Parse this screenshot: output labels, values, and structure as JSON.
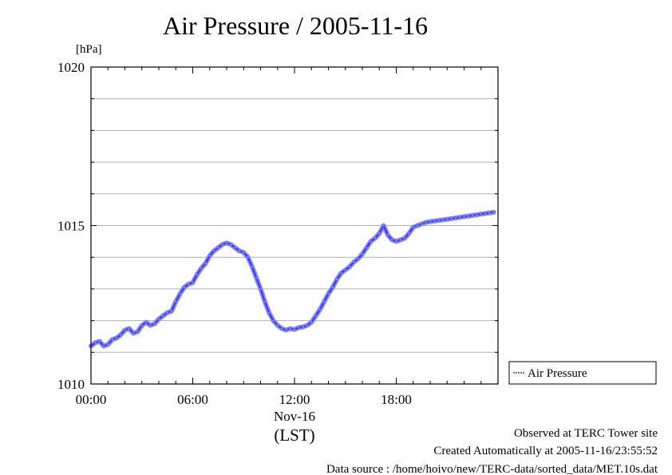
{
  "chart_data": {
    "type": "line",
    "title": "Air Pressure / 2005-11-16",
    "yunit": "[hPa]",
    "ylim": [
      1010,
      1020
    ],
    "xlim": [
      0,
      24
    ],
    "grid": true,
    "y_ticks": [
      {
        "value": 1010,
        "label": "1010"
      },
      {
        "value": 1015,
        "label": "1015"
      },
      {
        "value": 1020,
        "label": "1020"
      }
    ],
    "x_ticks": [
      {
        "value": 0,
        "label": "00:00"
      },
      {
        "value": 6,
        "label": "06:00"
      },
      {
        "value": 12,
        "label": "12:00"
      },
      {
        "value": 18,
        "label": "18:00"
      }
    ],
    "date_label": "Nov-16",
    "xlabel": "(LST)",
    "legend_position": "right",
    "series": [
      {
        "name": "Air Pressure",
        "color": "#3333ff",
        "marker_color": "#8a8aff",
        "x": [
          0.0,
          0.25,
          0.5,
          0.75,
          1.0,
          1.25,
          1.5,
          1.75,
          2.0,
          2.25,
          2.5,
          2.75,
          3.0,
          3.25,
          3.5,
          3.75,
          4.0,
          4.25,
          4.5,
          4.75,
          5.0,
          5.25,
          5.5,
          5.75,
          6.0,
          6.25,
          6.5,
          6.75,
          7.0,
          7.25,
          7.5,
          7.75,
          8.0,
          8.25,
          8.5,
          8.75,
          9.0,
          9.25,
          9.5,
          9.75,
          10.0,
          10.25,
          10.5,
          10.75,
          11.0,
          11.25,
          11.5,
          11.75,
          12.0,
          12.25,
          12.5,
          12.75,
          13.0,
          13.25,
          13.5,
          13.75,
          14.0,
          14.25,
          14.5,
          14.75,
          15.0,
          15.25,
          15.5,
          15.75,
          16.0,
          16.25,
          16.5,
          16.75,
          17.0,
          17.25,
          17.5,
          17.75,
          18.0,
          18.25,
          18.5,
          18.75,
          19.0,
          19.25,
          19.5,
          19.75,
          20.0,
          20.25,
          20.5,
          20.75,
          21.0,
          21.25,
          21.5,
          21.75,
          22.0,
          22.25,
          22.5,
          22.75,
          23.0,
          23.25,
          23.5,
          23.75
        ],
        "values": [
          1011.2,
          1011.3,
          1011.35,
          1011.2,
          1011.25,
          1011.4,
          1011.45,
          1011.55,
          1011.7,
          1011.75,
          1011.6,
          1011.65,
          1011.85,
          1011.95,
          1011.85,
          1011.9,
          1012.05,
          1012.15,
          1012.25,
          1012.3,
          1012.6,
          1012.85,
          1013.05,
          1013.15,
          1013.2,
          1013.45,
          1013.65,
          1013.8,
          1014.05,
          1014.2,
          1014.3,
          1014.4,
          1014.45,
          1014.4,
          1014.3,
          1014.2,
          1014.15,
          1014.0,
          1013.7,
          1013.35,
          1013.0,
          1012.6,
          1012.25,
          1012.0,
          1011.85,
          1011.75,
          1011.7,
          1011.75,
          1011.72,
          1011.78,
          1011.8,
          1011.85,
          1011.95,
          1012.15,
          1012.35,
          1012.6,
          1012.85,
          1013.05,
          1013.3,
          1013.5,
          1013.6,
          1013.7,
          1013.85,
          1013.95,
          1014.1,
          1014.3,
          1014.5,
          1014.6,
          1014.75,
          1015.0,
          1014.7,
          1014.55,
          1014.5,
          1014.55,
          1014.6,
          1014.75,
          1014.95,
          1015.0,
          1015.05,
          1015.1,
          1015.12,
          1015.14,
          1015.16,
          1015.18,
          1015.2,
          1015.22,
          1015.24,
          1015.26,
          1015.28,
          1015.3,
          1015.32,
          1015.34,
          1015.36,
          1015.38,
          1015.4,
          1015.42
        ]
      }
    ]
  },
  "footer": {
    "site": "Observed at TERC Tower site",
    "created": "Created Automatically at 2005-11-16/23:55:52",
    "source": "Data source : /home/hoivo/new/TERC-data/sorted_data/MET.10s.dat"
  }
}
